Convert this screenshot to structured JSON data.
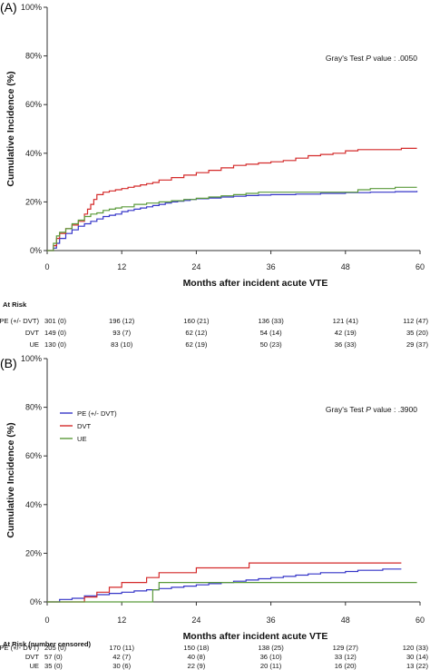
{
  "chart_data": [
    {
      "type": "line",
      "panel_label": "(A)",
      "xlabel": "Months after incident acute VTE",
      "ylabel": "Cumulative Incidence (%)",
      "xlim": [
        0,
        60
      ],
      "ylim": [
        0,
        100
      ],
      "x_ticks": [
        "0",
        "12",
        "24",
        "36",
        "48",
        "60"
      ],
      "y_ticks": [
        "0%",
        "20%",
        "40%",
        "60%",
        "80%",
        "100%"
      ],
      "annotation_pre": "Gray's Test ",
      "annotation_p": "P",
      "annotation_post": " value : .0050",
      "legend": false,
      "series": [
        {
          "name": "PE (+/- DVT)",
          "color": "#3535c8",
          "points": [
            [
              0,
              0
            ],
            [
              1,
              1
            ],
            [
              1.5,
              3
            ],
            [
              2,
              5
            ],
            [
              3,
              7
            ],
            [
              4,
              8.5
            ],
            [
              5,
              10
            ],
            [
              6,
              11
            ],
            [
              7,
              12
            ],
            [
              8,
              13
            ],
            [
              9,
              14
            ],
            [
              10,
              14.5
            ],
            [
              11,
              15
            ],
            [
              12,
              16
            ],
            [
              13,
              16.5
            ],
            [
              14,
              17
            ],
            [
              15,
              17.5
            ],
            [
              16,
              18
            ],
            [
              17,
              18.5
            ],
            [
              18,
              19
            ],
            [
              19,
              19.5
            ],
            [
              20,
              20
            ],
            [
              21,
              20.3
            ],
            [
              22,
              20.6
            ],
            [
              23,
              21
            ],
            [
              24,
              21.3
            ],
            [
              26,
              21.6
            ],
            [
              28,
              22
            ],
            [
              30,
              22.3
            ],
            [
              32,
              22.6
            ],
            [
              34,
              22.8
            ],
            [
              36,
              23
            ],
            [
              40,
              23.2
            ],
            [
              44,
              23.5
            ],
            [
              48,
              23.8
            ],
            [
              52,
              24
            ],
            [
              56,
              24.2
            ],
            [
              59.5,
              24.5
            ]
          ]
        },
        {
          "name": "DVT",
          "color": "#d42a2a",
          "points": [
            [
              0,
              0
            ],
            [
              1,
              2
            ],
            [
              1.5,
              5
            ],
            [
              2,
              7
            ],
            [
              3,
              9
            ],
            [
              4,
              10.5
            ],
            [
              5,
              12
            ],
            [
              6,
              15
            ],
            [
              6.5,
              17
            ],
            [
              7,
              19
            ],
            [
              7.5,
              21
            ],
            [
              8,
              23
            ],
            [
              9,
              24
            ],
            [
              10,
              24.5
            ],
            [
              11,
              25
            ],
            [
              12,
              25.5
            ],
            [
              13,
              26
            ],
            [
              14,
              26.5
            ],
            [
              15,
              27
            ],
            [
              16,
              27.5
            ],
            [
              17,
              28
            ],
            [
              18,
              29
            ],
            [
              20,
              30
            ],
            [
              22,
              31
            ],
            [
              24,
              32
            ],
            [
              26,
              33
            ],
            [
              28,
              34
            ],
            [
              30,
              35
            ],
            [
              32,
              35.5
            ],
            [
              34,
              36
            ],
            [
              36,
              36.5
            ],
            [
              38,
              37
            ],
            [
              40,
              38
            ],
            [
              42,
              39
            ],
            [
              44,
              39.5
            ],
            [
              46,
              40
            ],
            [
              48,
              41
            ],
            [
              50,
              41.5
            ],
            [
              54,
              41.5
            ],
            [
              57,
              42
            ],
            [
              59.5,
              42
            ]
          ]
        },
        {
          "name": "UE",
          "color": "#5a9a3a",
          "points": [
            [
              0,
              0
            ],
            [
              1,
              3
            ],
            [
              1.5,
              6
            ],
            [
              2,
              7.5
            ],
            [
              3,
              9
            ],
            [
              4,
              11
            ],
            [
              5,
              12.5
            ],
            [
              6,
              14
            ],
            [
              7,
              15
            ],
            [
              8,
              15.5
            ],
            [
              9,
              16.5
            ],
            [
              10,
              17
            ],
            [
              11,
              17.5
            ],
            [
              12,
              18
            ],
            [
              14,
              19
            ],
            [
              16,
              19.5
            ],
            [
              18,
              20
            ],
            [
              20,
              20.5
            ],
            [
              22,
              21
            ],
            [
              24,
              21.5
            ],
            [
              26,
              22
            ],
            [
              28,
              22.5
            ],
            [
              30,
              23
            ],
            [
              32,
              23.5
            ],
            [
              34,
              24
            ],
            [
              36,
              24
            ],
            [
              40,
              24
            ],
            [
              44,
              24
            ],
            [
              48,
              24
            ],
            [
              50,
              25
            ],
            [
              52,
              25.5
            ],
            [
              56,
              26
            ],
            [
              59.5,
              26
            ]
          ]
        }
      ],
      "at_risk": {
        "header": "At Risk",
        "rows": [
          {
            "label": "PE (+/- DVT)",
            "values": [
              "301 (0)",
              "196 (12)",
              "160 (21)",
              "136 (33)",
              "121 (41)",
              "112 (47)"
            ]
          },
          {
            "label": "DVT",
            "values": [
              "149 (0)",
              "93 (7)",
              "62 (12)",
              "54 (14)",
              "42 (19)",
              "35 (20)"
            ]
          },
          {
            "label": "UE",
            "values": [
              "130 (0)",
              "83 (10)",
              "62 (19)",
              "50 (23)",
              "36 (33)",
              "29 (37)"
            ]
          }
        ]
      }
    },
    {
      "type": "line",
      "panel_label": "(B)",
      "xlabel": "Months after incident acute VTE",
      "ylabel": "Cumulative Incidence (%)",
      "xlim": [
        0,
        60
      ],
      "ylim": [
        0,
        100
      ],
      "x_ticks": [
        "0",
        "12",
        "24",
        "36",
        "48",
        "60"
      ],
      "y_ticks": [
        "0%",
        "20%",
        "40%",
        "60%",
        "80%",
        "100%"
      ],
      "annotation_pre": "Gray's Test ",
      "annotation_p": "P",
      "annotation_post": " value : .3900",
      "legend": true,
      "legend_position": "upper-left",
      "series": [
        {
          "name": "PE (+/- DVT)",
          "color": "#3535c8",
          "points": [
            [
              0,
              0
            ],
            [
              2,
              1
            ],
            [
              4,
              1.5
            ],
            [
              6,
              2.5
            ],
            [
              8,
              3
            ],
            [
              10,
              3.5
            ],
            [
              12,
              4
            ],
            [
              14,
              4.5
            ],
            [
              16,
              5
            ],
            [
              18,
              5.5
            ],
            [
              20,
              6
            ],
            [
              22,
              6.5
            ],
            [
              24,
              7
            ],
            [
              26,
              7.5
            ],
            [
              28,
              8
            ],
            [
              30,
              8.5
            ],
            [
              32,
              9
            ],
            [
              34,
              9.5
            ],
            [
              36,
              10
            ],
            [
              38,
              10.5
            ],
            [
              40,
              11
            ],
            [
              42,
              11.5
            ],
            [
              44,
              12
            ],
            [
              46,
              12
            ],
            [
              48,
              12.5
            ],
            [
              50,
              13
            ],
            [
              52,
              13
            ],
            [
              54,
              13.5
            ],
            [
              56,
              13.5
            ],
            [
              57,
              13.5
            ]
          ]
        },
        {
          "name": "DVT",
          "color": "#d42a2a",
          "points": [
            [
              0,
              0
            ],
            [
              6,
              2
            ],
            [
              8,
              4
            ],
            [
              10,
              6
            ],
            [
              12,
              8
            ],
            [
              16,
              10
            ],
            [
              18,
              12
            ],
            [
              22,
              12
            ],
            [
              24,
              14
            ],
            [
              32,
              14
            ],
            [
              32.5,
              16
            ],
            [
              40,
              16
            ],
            [
              44,
              16
            ],
            [
              48,
              16
            ],
            [
              57,
              16
            ]
          ]
        },
        {
          "name": "UE",
          "color": "#5a9a3a",
          "points": [
            [
              0,
              0
            ],
            [
              16,
              0
            ],
            [
              17,
              5
            ],
            [
              18,
              8
            ],
            [
              24,
              8
            ],
            [
              30,
              8
            ],
            [
              40,
              8
            ],
            [
              50,
              8
            ],
            [
              59.5,
              8
            ]
          ]
        }
      ],
      "at_risk": {
        "header": "At Risk (number censored)",
        "rows": [
          {
            "label": "PE (+/- DVT)",
            "values": [
              "205 (0)",
              "170 (11)",
              "150 (18)",
              "138 (25)",
              "129 (27)",
              "120 (33)"
            ]
          },
          {
            "label": "DVT",
            "values": [
              "57 (0)",
              "42 (7)",
              "40 (8)",
              "36 (10)",
              "33 (12)",
              "30 (14)"
            ]
          },
          {
            "label": "UE",
            "values": [
              "35 (0)",
              "30 (6)",
              "22 (9)",
              "20 (11)",
              "16 (20)",
              "13 (22)"
            ]
          }
        ]
      }
    }
  ]
}
